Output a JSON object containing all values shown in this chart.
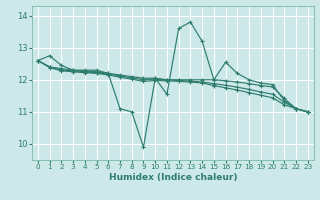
{
  "xlabel": "Humidex (Indice chaleur)",
  "background_color": "#cce8e8",
  "grid_color": "#ffffff",
  "line_color": "#2e7d6e",
  "xlim": [
    -0.5,
    23.5
  ],
  "ylim": [
    9.5,
    14.3
  ],
  "yticks": [
    10,
    11,
    12,
    13,
    14
  ],
  "xticks": [
    0,
    1,
    2,
    3,
    4,
    5,
    6,
    7,
    8,
    9,
    10,
    11,
    12,
    13,
    14,
    15,
    16,
    17,
    18,
    19,
    20,
    21,
    22,
    23
  ],
  "lines": [
    {
      "x": [
        0,
        1,
        2,
        3,
        4,
        5,
        6,
        7,
        8,
        9,
        10,
        11,
        12,
        13,
        14,
        15,
        16,
        17,
        18,
        19,
        20,
        21,
        22,
        23
      ],
      "y": [
        12.6,
        12.75,
        12.45,
        12.3,
        12.3,
        12.3,
        12.2,
        11.1,
        11.0,
        9.9,
        12.05,
        11.55,
        13.6,
        13.8,
        13.2,
        12.0,
        12.55,
        12.2,
        12.0,
        11.9,
        11.85,
        11.35,
        11.1,
        11.0
      ]
    },
    {
      "x": [
        0,
        1,
        2,
        3,
        4,
        5,
        6,
        7,
        8,
        9,
        10,
        11,
        12,
        13,
        14,
        15,
        16,
        17,
        18,
        19,
        20,
        21,
        22,
        23
      ],
      "y": [
        12.6,
        12.4,
        12.35,
        12.3,
        12.27,
        12.25,
        12.2,
        12.15,
        12.1,
        12.05,
        12.05,
        12.0,
        12.0,
        12.0,
        12.0,
        12.0,
        11.97,
        11.93,
        11.88,
        11.82,
        11.78,
        11.42,
        11.1,
        11.0
      ]
    },
    {
      "x": [
        0,
        1,
        2,
        3,
        4,
        5,
        6,
        7,
        8,
        9,
        10,
        11,
        12,
        13,
        14,
        15,
        16,
        17,
        18,
        19,
        20,
        21,
        22,
        23
      ],
      "y": [
        12.6,
        12.4,
        12.3,
        12.28,
        12.25,
        12.22,
        12.18,
        12.12,
        12.06,
        12.0,
        12.02,
        12.0,
        11.98,
        11.96,
        11.93,
        11.88,
        11.83,
        11.77,
        11.7,
        11.62,
        11.55,
        11.3,
        11.1,
        11.0
      ]
    },
    {
      "x": [
        0,
        1,
        2,
        3,
        4,
        5,
        6,
        7,
        8,
        9,
        10,
        11,
        12,
        13,
        14,
        15,
        16,
        17,
        18,
        19,
        20,
        21,
        22,
        23
      ],
      "y": [
        12.6,
        12.38,
        12.28,
        12.25,
        12.22,
        12.2,
        12.15,
        12.08,
        12.02,
        11.95,
        11.98,
        11.97,
        11.95,
        11.93,
        11.9,
        11.82,
        11.75,
        11.68,
        11.6,
        11.52,
        11.44,
        11.22,
        11.1,
        11.0
      ]
    }
  ]
}
